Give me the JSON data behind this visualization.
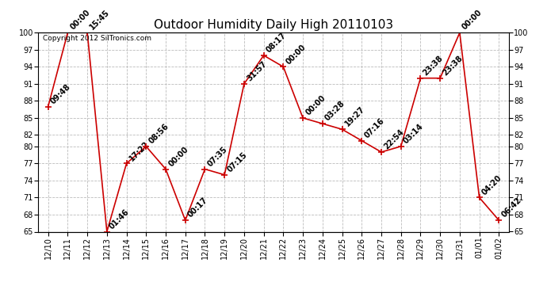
{
  "title": "Outdoor Humidity Daily High 20110103",
  "copyright": "Copyright 2012 SilTronics.com",
  "x_labels": [
    "12/10",
    "12/11",
    "12/12",
    "12/13",
    "12/14",
    "12/15",
    "12/16",
    "12/17",
    "12/18",
    "12/19",
    "12/20",
    "12/21",
    "12/22",
    "12/23",
    "12/24",
    "12/25",
    "12/26",
    "12/27",
    "12/28",
    "12/29",
    "12/30",
    "12/31",
    "01/01",
    "01/02"
  ],
  "y_values": [
    87,
    100,
    100,
    65,
    77,
    80,
    76,
    67,
    76,
    75,
    91,
    96,
    94,
    85,
    84,
    83,
    81,
    79,
    80,
    92,
    92,
    100,
    71,
    67
  ],
  "point_labels": [
    "09:48",
    "00:00",
    "15:45",
    "01:46",
    "17:22",
    "08:56",
    "00:00",
    "00:17",
    "07:35",
    "07:15",
    "31:57",
    "08:17",
    "00:00",
    "00:00",
    "03:28",
    "19:27",
    "07:16",
    "22:54",
    "03:14",
    "23:38",
    "23:38",
    "00:00",
    "04:20",
    "06:42"
  ],
  "ylim": [
    65,
    100
  ],
  "yticks": [
    65,
    68,
    71,
    74,
    77,
    80,
    82,
    85,
    88,
    91,
    94,
    97,
    100
  ],
  "line_color": "#cc0000",
  "marker_color": "#cc0000",
  "bg_color": "#ffffff",
  "grid_color": "#bbbbbb",
  "title_fontsize": 11,
  "tick_fontsize": 7,
  "label_fontsize": 7,
  "copyright_fontsize": 6.5
}
